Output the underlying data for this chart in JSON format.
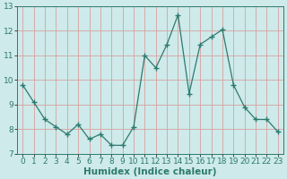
{
  "x": [
    0,
    1,
    2,
    3,
    4,
    5,
    6,
    7,
    8,
    9,
    10,
    11,
    12,
    13,
    14,
    15,
    16,
    17,
    18,
    19,
    20,
    21,
    22,
    23
  ],
  "y": [
    9.8,
    9.1,
    8.4,
    8.1,
    7.8,
    8.2,
    7.6,
    7.8,
    7.35,
    7.35,
    8.1,
    11.0,
    10.5,
    11.45,
    12.65,
    9.45,
    11.45,
    11.75,
    12.05,
    9.8,
    8.9,
    8.4,
    8.4,
    7.9
  ],
  "line_color": "#2d7a6e",
  "marker": "+",
  "marker_size": 4,
  "bg_color": "#ceeaea",
  "grid_color": "#d8a0a0",
  "xlabel": "Humidex (Indice chaleur)",
  "ylim": [
    7,
    13
  ],
  "xlim": [
    -0.5,
    23.5
  ],
  "yticks": [
    7,
    8,
    9,
    10,
    11,
    12,
    13
  ],
  "xticks": [
    0,
    1,
    2,
    3,
    4,
    5,
    6,
    7,
    8,
    9,
    10,
    11,
    12,
    13,
    14,
    15,
    16,
    17,
    18,
    19,
    20,
    21,
    22,
    23
  ],
  "tick_fontsize": 6.5,
  "label_fontsize": 7.5,
  "label_fontweight": "bold"
}
